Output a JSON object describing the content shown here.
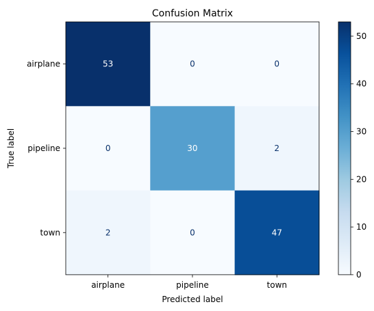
{
  "chart_data": {
    "type": "heatmap",
    "title": "Confusion Matrix",
    "xlabel": "Predicted label",
    "ylabel": "True label",
    "x_categories": [
      "airplane",
      "pipeline",
      "town"
    ],
    "y_categories": [
      "airplane",
      "pipeline",
      "town"
    ],
    "values": [
      [
        53,
        0,
        0
      ],
      [
        0,
        30,
        2
      ],
      [
        2,
        0,
        47
      ]
    ],
    "colormap": "Blues",
    "color_range": [
      0,
      53
    ],
    "colorbar_ticks": [
      0,
      10,
      20,
      30,
      40,
      50
    ],
    "grid": false,
    "colors": {
      "low": "#f7fbff",
      "high": "#08306b",
      "text_on_dark": "#ffffff",
      "text_on_light": "#08306b"
    }
  }
}
